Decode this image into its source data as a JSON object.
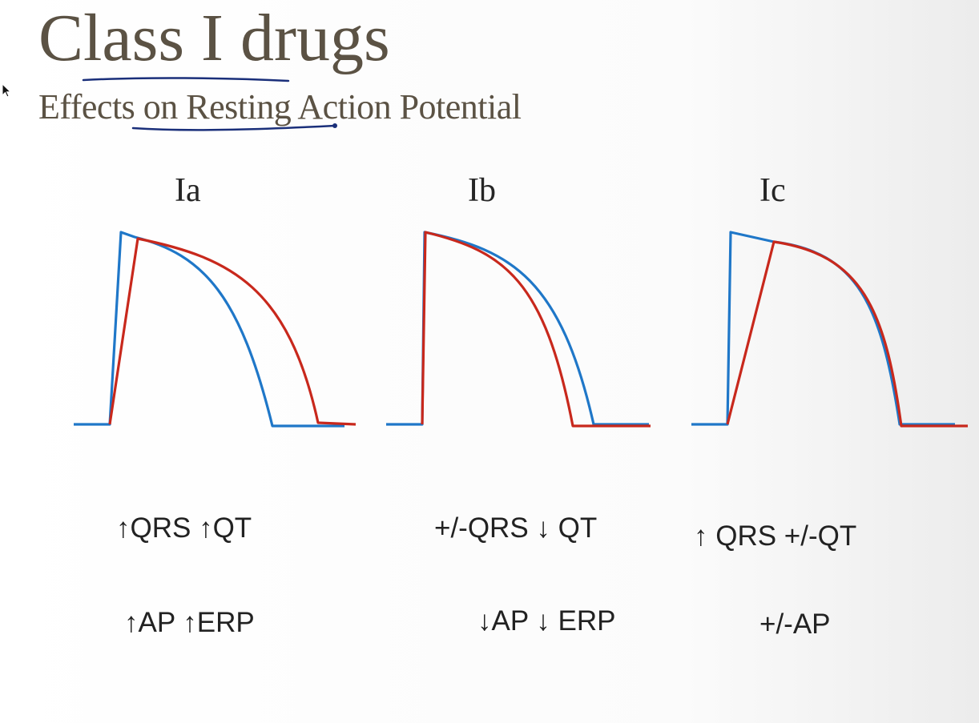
{
  "slide": {
    "title": "Class I drugs",
    "subtitle": "Effects on Resting Action Potential"
  },
  "colors": {
    "title": "#5b5244",
    "baseline_curve": "#1f77c8",
    "drug_curve": "#c8281c",
    "annotation_ink": "#1a2f7a"
  },
  "panels": [
    {
      "label": "Ia",
      "effect_ecg": "↑QRS ↑QT",
      "effect_ap": "↑AP ↑ERP"
    },
    {
      "label": "Ib",
      "effect_ecg": "+/-QRS ↓ QT",
      "effect_ap": "↓AP ↓ ERP"
    },
    {
      "label": "Ic",
      "effect_ecg": "↑ QRS  +/-QT",
      "effect_ap": "+/-AP"
    }
  ]
}
